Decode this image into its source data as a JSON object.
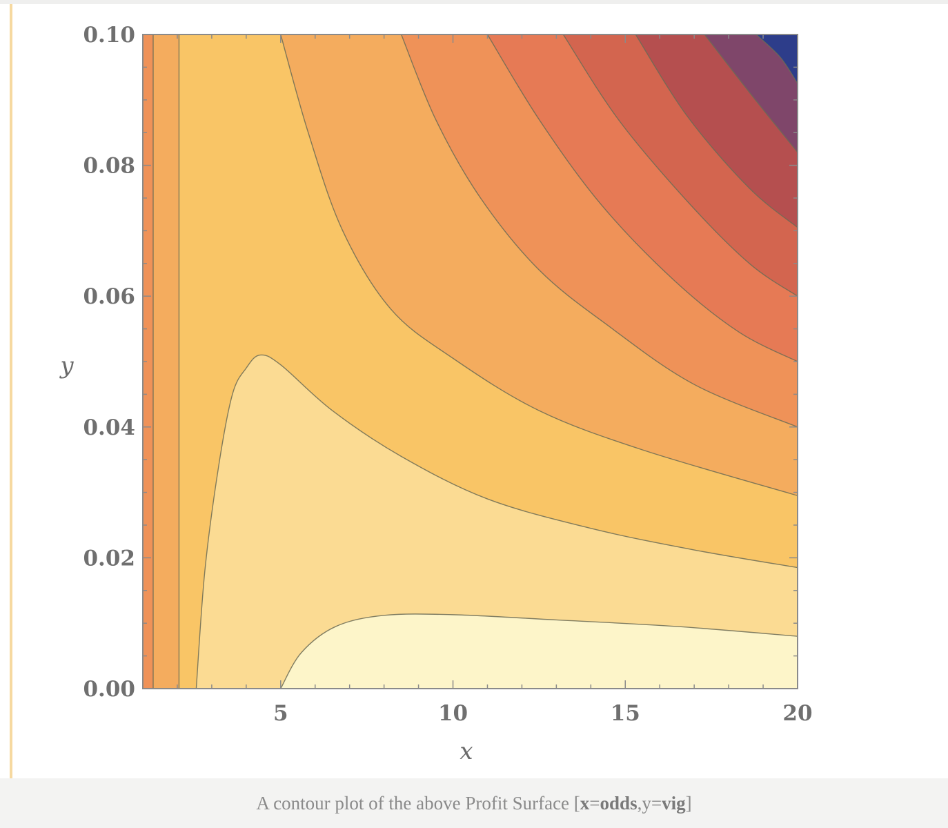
{
  "caption": {
    "prefix": "A contour plot of the above Profit Surface [",
    "x_key": "x",
    "x_eq": " = ",
    "x_val": "odds",
    "sep": ", ",
    "y_key": "y",
    "y_eq": " = ",
    "y_val": "vig",
    "suffix": "]"
  },
  "chart_data": {
    "type": "contour",
    "xlabel": "x",
    "ylabel": "y",
    "xlim": [
      1,
      20
    ],
    "ylim": [
      0,
      0.1
    ],
    "xticks": [
      {
        "value": 5,
        "label": "5"
      },
      {
        "value": 10,
        "label": "10"
      },
      {
        "value": 15,
        "label": "15"
      },
      {
        "value": 20,
        "label": "20"
      }
    ],
    "yticks": [
      {
        "value": 0.0,
        "label": "0.00"
      },
      {
        "value": 0.02,
        "label": "0.02"
      },
      {
        "value": 0.04,
        "label": "0.04"
      },
      {
        "value": 0.06,
        "label": "0.06"
      },
      {
        "value": 0.08,
        "label": "0.08"
      },
      {
        "value": 0.1,
        "label": "0.10"
      }
    ],
    "grid": false,
    "band_colors": [
      "#fdf5c9",
      "#fbdb93",
      "#f9c566",
      "#f4ac5e",
      "#ef9258",
      "#e67a55",
      "#d3654f",
      "#b54f4f",
      "#7f466a",
      "#2d3d8a"
    ],
    "contours": [
      {
        "color": "#fbdb93",
        "points": [
          [
            5.0,
            0.0
          ],
          [
            5.6,
            0.0055
          ],
          [
            6.6,
            0.0095
          ],
          [
            8.0,
            0.0112
          ],
          [
            10.0,
            0.0113
          ],
          [
            13.0,
            0.0105
          ],
          [
            16.5,
            0.0095
          ],
          [
            20.0,
            0.008
          ]
        ]
      },
      {
        "color": "#f9c566",
        "points": [
          [
            2.55,
            0.0
          ],
          [
            2.8,
            0.018
          ],
          [
            3.2,
            0.034
          ],
          [
            3.6,
            0.045
          ],
          [
            4.0,
            0.049
          ],
          [
            4.4,
            0.051
          ],
          [
            5.0,
            0.0495
          ],
          [
            6.5,
            0.0425
          ],
          [
            8.5,
            0.0355
          ],
          [
            11.0,
            0.029
          ],
          [
            14.0,
            0.0245
          ],
          [
            17.0,
            0.0212
          ],
          [
            20.0,
            0.0185
          ]
        ]
      },
      {
        "color": "#f4ac5e",
        "points": [
          [
            2.05,
            0.1
          ],
          [
            2.05,
            0.0
          ]
        ]
      },
      {
        "color": "#ef9258",
        "points": [
          [
            1.3,
            0.1
          ],
          [
            1.3,
            0.0
          ]
        ]
      },
      {
        "color": "#f4ac5e",
        "points": [
          [
            5.0,
            0.1
          ],
          [
            5.8,
            0.085
          ],
          [
            6.8,
            0.07
          ],
          [
            8.2,
            0.058
          ],
          [
            10.0,
            0.0505
          ],
          [
            12.5,
            0.0425
          ],
          [
            15.5,
            0.0365
          ],
          [
            20.0,
            0.0295
          ]
        ]
      },
      {
        "color": "#ef9258",
        "points": [
          [
            8.5,
            0.1
          ],
          [
            9.5,
            0.087
          ],
          [
            10.8,
            0.075
          ],
          [
            12.5,
            0.064
          ],
          [
            14.5,
            0.0555
          ],
          [
            17.0,
            0.0465
          ],
          [
            20.0,
            0.04
          ]
        ]
      },
      {
        "color": "#e67a55",
        "points": [
          [
            11.0,
            0.1
          ],
          [
            12.5,
            0.087
          ],
          [
            14.3,
            0.074
          ],
          [
            16.4,
            0.0625
          ],
          [
            18.3,
            0.0545
          ],
          [
            20.0,
            0.05
          ]
        ]
      },
      {
        "color": "#d3654f",
        "points": [
          [
            13.2,
            0.1
          ],
          [
            14.8,
            0.087
          ],
          [
            16.8,
            0.0745
          ],
          [
            18.6,
            0.065
          ],
          [
            20.0,
            0.06
          ]
        ]
      },
      {
        "color": "#b54f4f",
        "points": [
          [
            15.3,
            0.1
          ],
          [
            16.8,
            0.0875
          ],
          [
            18.6,
            0.0765
          ],
          [
            20.0,
            0.0705
          ]
        ]
      },
      {
        "color": "#7f466a",
        "points": [
          [
            17.3,
            0.1
          ],
          [
            18.7,
            0.0905
          ],
          [
            20.0,
            0.082
          ]
        ]
      },
      {
        "color": "#2d3d8a",
        "points": [
          [
            18.8,
            0.1
          ],
          [
            19.5,
            0.0965
          ],
          [
            20.0,
            0.0925
          ]
        ]
      }
    ]
  }
}
